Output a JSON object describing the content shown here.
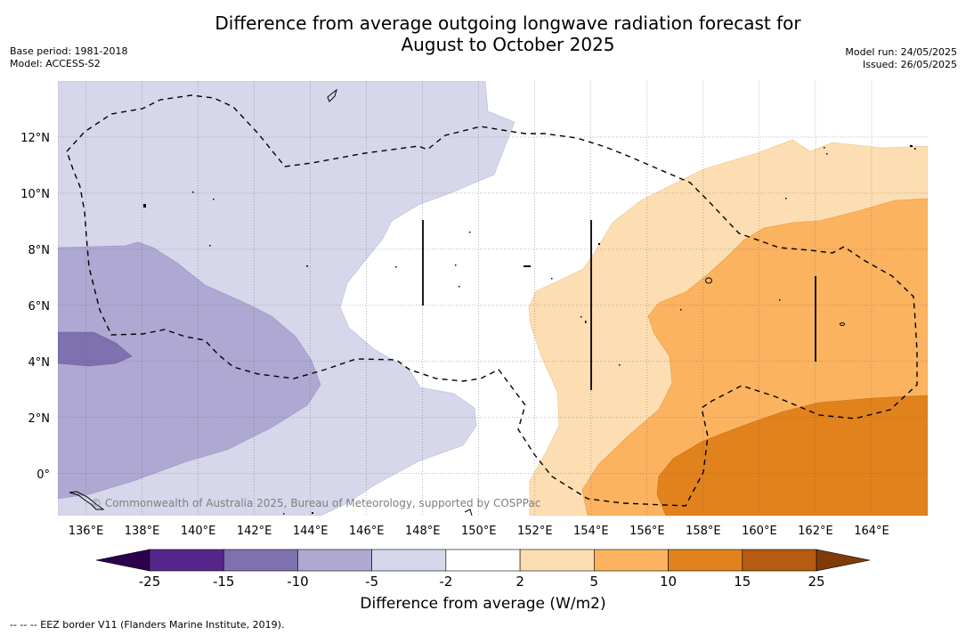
{
  "header": {
    "title_line1": "Difference from average outgoing longwave radiation forecast for",
    "title_line2": "August to October 2025",
    "base_period": "Base period: 1981-2018",
    "model": "Model: ACCESS-S2",
    "model_run": "Model run: 24/05/2025",
    "issued": "Issued: 26/05/2025"
  },
  "map": {
    "lon_range": [
      135,
      166
    ],
    "lat_range": [
      -1.5,
      14
    ],
    "lon_ticks": [
      "136°E",
      "138°E",
      "140°E",
      "142°E",
      "144°E",
      "146°E",
      "148°E",
      "150°E",
      "152°E",
      "154°E",
      "156°E",
      "158°E",
      "160°E",
      "162°E",
      "164°E"
    ],
    "lat_ticks": [
      "12°N",
      "10°N",
      "8°N",
      "6°N",
      "4°N",
      "2°N",
      "0°"
    ],
    "credit": "© Commonwealth of Australia 2025, Bureau of Meteorology, supported by COSPPac",
    "grid": "dotted",
    "colors": {
      "lt_-15": "#7f71b0",
      "-15_-10": "#afa8d2",
      "-10_-5": "#d6d7ea",
      "-2_2": "#ffffff",
      "2_5": "#fddeb2",
      "5_10": "#fbb360",
      "10_15": "#e1821d"
    }
  },
  "colorbar": {
    "label": "Difference from average (W/m2)",
    "ticks": [
      "-25",
      "-15",
      "-10",
      "-5",
      "-2",
      "2",
      "5",
      "10",
      "15",
      "25"
    ],
    "colors": [
      "#56278a",
      "#7f71b0",
      "#afa8d2",
      "#d6d7ea",
      "#ffffff",
      "#fddeb2",
      "#fbb360",
      "#e1821d",
      "#b55b12"
    ],
    "under_color": "#2d004b",
    "over_color": "#7f3b08"
  },
  "footer": {
    "eez_note": "--  --  -- EEZ border V11 (Flanders Marine Institute, 2019)."
  }
}
